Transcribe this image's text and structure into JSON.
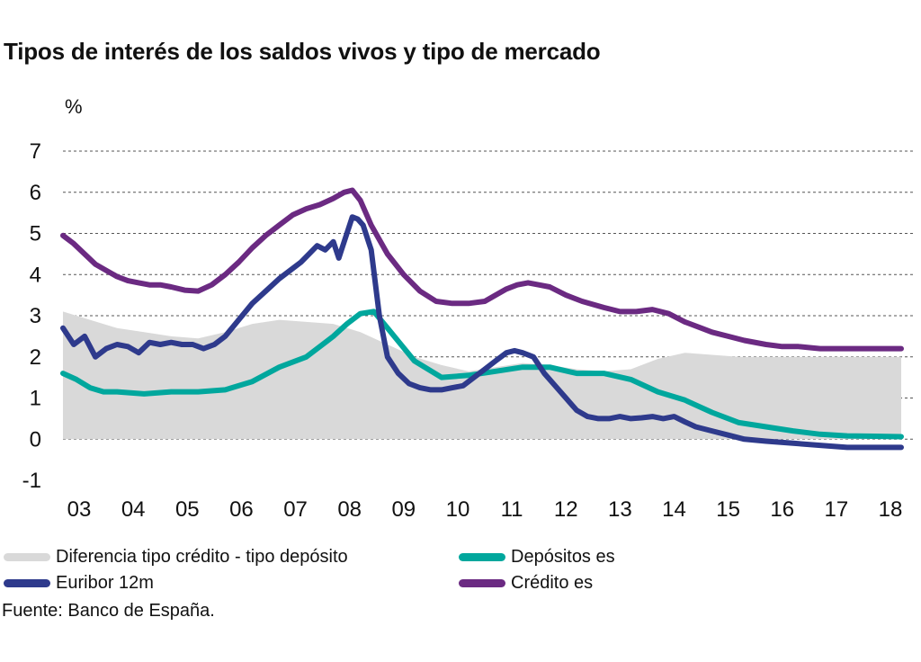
{
  "chart_data": {
    "type": "line",
    "title": "Tipos de interés de los saldos vivos y tipo de mercado",
    "ylabel": "%",
    "ylim": [
      -1,
      7
    ],
    "yticks": [
      -1,
      0,
      1,
      2,
      3,
      4,
      5,
      6,
      7
    ],
    "xlim": [
      2003.0,
      2018.0
    ],
    "xticks": [
      {
        "label": "03",
        "x": 2003.3
      },
      {
        "label": "04",
        "x": 2004.3
      },
      {
        "label": "05",
        "x": 2005.3
      },
      {
        "label": "06",
        "x": 2006.3
      },
      {
        "label": "07",
        "x": 2007.3
      },
      {
        "label": "08",
        "x": 2008.3
      },
      {
        "label": "09",
        "x": 2009.3
      },
      {
        "label": "10",
        "x": 2010.3
      },
      {
        "label": "11",
        "x": 2011.3
      },
      {
        "label": "12",
        "x": 2012.3
      },
      {
        "label": "13",
        "x": 2013.3
      },
      {
        "label": "14",
        "x": 2014.3
      },
      {
        "label": "15",
        "x": 2015.3
      },
      {
        "label": "16",
        "x": 2016.3
      },
      {
        "label": "17",
        "x": 2017.3
      },
      {
        "label": "18",
        "x": 2018.3
      }
    ],
    "grid": "horizontal dashed",
    "legend_position": "bottom",
    "series": [
      {
        "name": "Diferencia tipo crédito - tipo depósito",
        "kind": "area",
        "color": "#d9d9d9",
        "x": [
          2003.0,
          2003.5,
          2004.0,
          2004.5,
          2005.0,
          2005.5,
          2006.0,
          2006.5,
          2007.0,
          2007.5,
          2008.0,
          2008.5,
          2009.0,
          2009.5,
          2010.0,
          2010.5,
          2011.0,
          2011.5,
          2012.0,
          2012.5,
          2013.0,
          2013.5,
          2014.0,
          2014.5,
          2015.0,
          2015.5,
          2016.0,
          2016.5,
          2017.0,
          2017.5,
          2018.0,
          2018.5
        ],
        "values": [
          3.1,
          2.9,
          2.7,
          2.6,
          2.5,
          2.45,
          2.6,
          2.8,
          2.9,
          2.85,
          2.8,
          2.6,
          2.3,
          2.0,
          1.8,
          1.65,
          1.75,
          1.85,
          1.8,
          1.7,
          1.65,
          1.7,
          1.95,
          2.1,
          2.05,
          2.0,
          2.0,
          2.0,
          2.0,
          2.0,
          2.0,
          2.0
        ]
      },
      {
        "name": "Depósitos es",
        "kind": "line",
        "color": "#00a79d",
        "x": [
          2003.0,
          2003.25,
          2003.5,
          2003.75,
          2004.0,
          2004.5,
          2005.0,
          2005.5,
          2006.0,
          2006.5,
          2007.0,
          2007.5,
          2008.0,
          2008.25,
          2008.5,
          2008.75,
          2009.0,
          2009.25,
          2009.5,
          2010.0,
          2010.5,
          2011.0,
          2011.5,
          2012.0,
          2012.5,
          2013.0,
          2013.5,
          2014.0,
          2014.5,
          2015.0,
          2015.5,
          2016.0,
          2016.5,
          2017.0,
          2017.5,
          2018.0,
          2018.5
        ],
        "values": [
          1.6,
          1.45,
          1.25,
          1.15,
          1.15,
          1.1,
          1.15,
          1.15,
          1.2,
          1.4,
          1.75,
          2.0,
          2.5,
          2.8,
          3.05,
          3.1,
          2.7,
          2.3,
          1.9,
          1.5,
          1.55,
          1.65,
          1.75,
          1.75,
          1.6,
          1.6,
          1.45,
          1.15,
          0.95,
          0.65,
          0.4,
          0.3,
          0.2,
          0.12,
          0.08,
          0.07,
          0.06
        ]
      },
      {
        "name": "Euribor 12m",
        "kind": "line",
        "color": "#2e3a8c",
        "x": [
          2003.0,
          2003.2,
          2003.4,
          2003.6,
          2003.8,
          2004.0,
          2004.2,
          2004.4,
          2004.6,
          2004.8,
          2005.0,
          2005.2,
          2005.4,
          2005.6,
          2005.8,
          2006.0,
          2006.25,
          2006.5,
          2006.75,
          2007.0,
          2007.2,
          2007.4,
          2007.55,
          2007.7,
          2007.85,
          2008.0,
          2008.1,
          2008.25,
          2008.35,
          2008.45,
          2008.55,
          2008.7,
          2008.85,
          2009.0,
          2009.2,
          2009.4,
          2009.6,
          2009.8,
          2010.0,
          2010.2,
          2010.4,
          2010.6,
          2010.8,
          2011.0,
          2011.2,
          2011.35,
          2011.5,
          2011.7,
          2011.9,
          2012.1,
          2012.3,
          2012.5,
          2012.7,
          2012.9,
          2013.1,
          2013.3,
          2013.5,
          2013.7,
          2013.9,
          2014.1,
          2014.3,
          2014.5,
          2014.7,
          2015.0,
          2015.3,
          2015.6,
          2016.0,
          2016.5,
          2017.0,
          2017.5,
          2018.0,
          2018.5
        ],
        "values": [
          2.7,
          2.3,
          2.5,
          2.0,
          2.2,
          2.3,
          2.25,
          2.1,
          2.35,
          2.3,
          2.35,
          2.3,
          2.3,
          2.2,
          2.3,
          2.5,
          2.9,
          3.3,
          3.6,
          3.9,
          4.1,
          4.3,
          4.5,
          4.7,
          4.6,
          4.8,
          4.4,
          5.0,
          5.4,
          5.35,
          5.2,
          4.6,
          3.0,
          2.0,
          1.6,
          1.35,
          1.25,
          1.2,
          1.2,
          1.25,
          1.3,
          1.5,
          1.7,
          1.9,
          2.1,
          2.15,
          2.1,
          2.0,
          1.6,
          1.3,
          1.0,
          0.7,
          0.55,
          0.5,
          0.5,
          0.55,
          0.5,
          0.52,
          0.55,
          0.5,
          0.55,
          0.42,
          0.3,
          0.2,
          0.1,
          0.0,
          -0.05,
          -0.1,
          -0.15,
          -0.2,
          -0.2,
          -0.2
        ]
      },
      {
        "name": "Crédito es",
        "kind": "line",
        "color": "#6b2a82",
        "x": [
          2003.0,
          2003.2,
          2003.4,
          2003.6,
          2003.8,
          2004.0,
          2004.2,
          2004.4,
          2004.6,
          2004.8,
          2005.0,
          2005.25,
          2005.5,
          2005.75,
          2006.0,
          2006.25,
          2006.5,
          2006.75,
          2007.0,
          2007.25,
          2007.5,
          2007.75,
          2008.0,
          2008.2,
          2008.35,
          2008.5,
          2008.7,
          2009.0,
          2009.3,
          2009.6,
          2009.9,
          2010.2,
          2010.5,
          2010.8,
          2011.0,
          2011.2,
          2011.4,
          2011.6,
          2011.8,
          2012.0,
          2012.3,
          2012.6,
          2013.0,
          2013.3,
          2013.6,
          2013.9,
          2014.2,
          2014.5,
          2014.8,
          2015.0,
          2015.3,
          2015.6,
          2016.0,
          2016.3,
          2016.6,
          2017.0,
          2017.3,
          2017.6,
          2018.0,
          2018.5
        ],
        "values": [
          4.95,
          4.75,
          4.5,
          4.25,
          4.1,
          3.95,
          3.85,
          3.8,
          3.75,
          3.75,
          3.7,
          3.62,
          3.6,
          3.75,
          4.0,
          4.3,
          4.65,
          4.95,
          5.2,
          5.45,
          5.6,
          5.7,
          5.85,
          6.0,
          6.05,
          5.8,
          5.2,
          4.5,
          4.0,
          3.6,
          3.35,
          3.3,
          3.3,
          3.35,
          3.5,
          3.65,
          3.75,
          3.8,
          3.75,
          3.7,
          3.5,
          3.35,
          3.2,
          3.1,
          3.1,
          3.15,
          3.05,
          2.85,
          2.7,
          2.6,
          2.5,
          2.4,
          2.3,
          2.25,
          2.25,
          2.2,
          2.2,
          2.2,
          2.2,
          2.2
        ]
      }
    ]
  },
  "legend": [
    {
      "label": "Diferencia tipo crédito - tipo depósito",
      "color": "#d9d9d9"
    },
    {
      "label": "Depósitos es",
      "color": "#00a79d"
    },
    {
      "label": "Euribor 12m",
      "color": "#2e3a8c"
    },
    {
      "label": "Crédito es",
      "color": "#6b2a82"
    }
  ],
  "source": "Fuente: Banco de España."
}
